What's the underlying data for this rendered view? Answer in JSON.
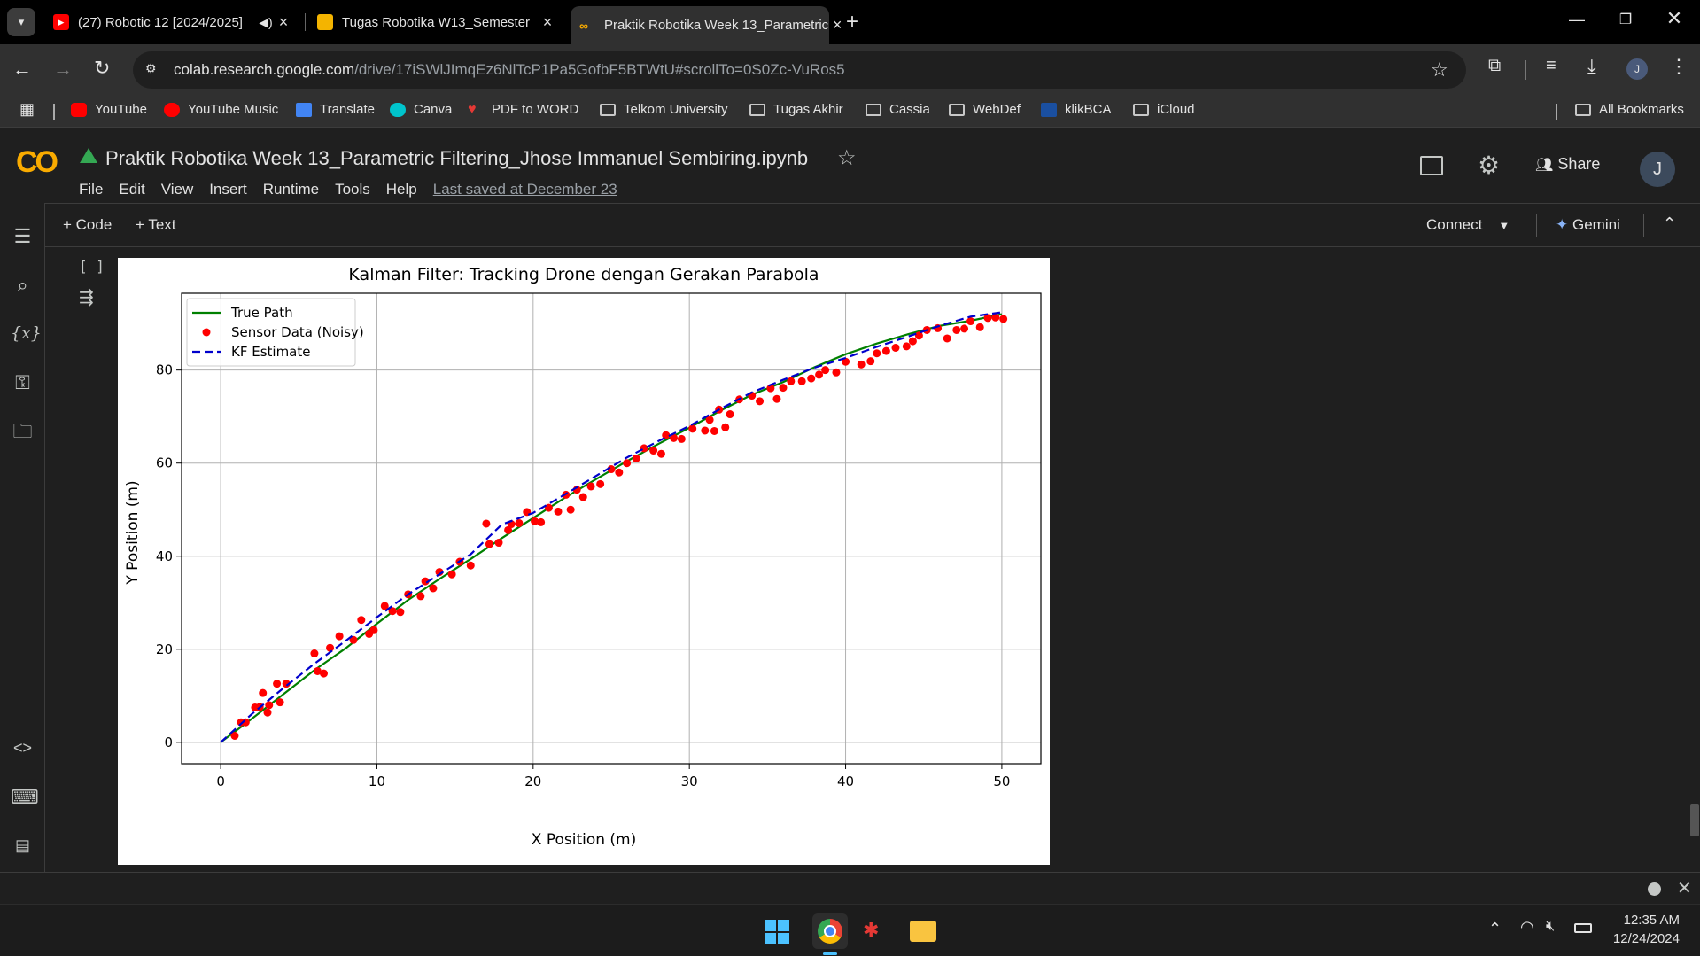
{
  "browser": {
    "tabs": [
      {
        "title": "(27) Robotic 12 [2024/2025]",
        "favicon": "youtube-icon"
      },
      {
        "title": "Tugas Robotika W13_Semester",
        "favicon": "slides-icon"
      },
      {
        "title": "Praktik Robotika Week 13_Parametric",
        "favicon": "colab-icon"
      }
    ],
    "url_host": "colab.research.google.com",
    "url_path": "/drive/17iSWlJImqEz6NlTcP1Pa5GofbF5BTWtU#scrollTo=0S0Zc-VuRos5",
    "profile_initial": "J",
    "bookmarks": [
      "YouTube",
      "YouTube Music",
      "Translate",
      "Canva",
      "PDF to WORD",
      "Telkom University",
      "Tugas Akhir",
      "Cassia",
      "WebDef",
      "klikBCA",
      "iCloud"
    ],
    "all_bookmarks": "All Bookmarks"
  },
  "colab": {
    "logo": "CO",
    "notebook_title": "Praktik Robotika Week 13_Parametric Filtering_Jhose Immanuel Sembiring.ipynb",
    "menus": [
      "File",
      "Edit",
      "View",
      "Insert",
      "Runtime",
      "Tools",
      "Help"
    ],
    "last_saved": "Last saved at December 23",
    "share": "Share",
    "avatar": "J",
    "add_code": "+ Code",
    "add_text": "+ Text",
    "connect": "Connect",
    "gemini": "Gemini",
    "cell_brackets": "[ ]"
  },
  "chart_data": {
    "type": "line",
    "title": "Kalman Filter: Tracking Drone dengan Gerakan Parabola",
    "xlabel": "X Position (m)",
    "ylabel": "Y Position (m)",
    "xlim": [
      -2.5,
      52.5
    ],
    "ylim": [
      -4.6,
      96.5
    ],
    "xticks": [
      0,
      10,
      20,
      30,
      40,
      50
    ],
    "yticks": [
      0,
      20,
      40,
      60,
      80
    ],
    "grid": true,
    "legend_position": "top-left",
    "series": [
      {
        "name": "True Path",
        "style": "solid",
        "color": "#008000",
        "x": [
          0,
          2,
          4,
          6,
          8,
          10,
          12,
          14,
          16,
          18,
          20,
          22,
          24,
          26,
          28,
          30,
          32,
          34,
          36,
          38,
          40,
          42,
          44,
          46,
          48,
          50
        ],
        "y": [
          0,
          5.1,
          10.3,
          15.5,
          20.2,
          25.5,
          30.6,
          35.1,
          39.4,
          43.9,
          48.2,
          52.5,
          56.5,
          60.4,
          64.1,
          67.6,
          71.3,
          74.7,
          77.4,
          80.6,
          83.4,
          85.7,
          87.7,
          89.5,
          90.6,
          92
        ]
      },
      {
        "name": "Sensor Data (Noisy)",
        "style": "points",
        "color": "#ff0000",
        "x": [
          0.9,
          1.3,
          1.6,
          2.2,
          2.5,
          2.7,
          3.0,
          3.1,
          3.6,
          3.8,
          4.2,
          6.0,
          6.2,
          6.6,
          7.0,
          7.6,
          8.5,
          9.0,
          9.5,
          9.8,
          10.5,
          11.0,
          11.5,
          12.0,
          12.8,
          13.1,
          13.6,
          14.0,
          14.8,
          15.3,
          16.0,
          17.0,
          17.2,
          17.8,
          18.4,
          18.6,
          19.1,
          19.6,
          20.1,
          20.5,
          21.0,
          21.6,
          22.1,
          22.4,
          22.8,
          23.2,
          23.7,
          24.3,
          25.0,
          25.5,
          26.0,
          26.6,
          27.1,
          27.7,
          28.2,
          28.5,
          29.0,
          29.5,
          30.2,
          31.0,
          31.3,
          31.6,
          31.9,
          32.3,
          32.6,
          33.2,
          34.0,
          34.5,
          35.2,
          35.6,
          36.0,
          36.5,
          37.2,
          37.8,
          38.3,
          38.7,
          39.4,
          40.0,
          41.0,
          41.6,
          42.0,
          42.6,
          43.2,
          43.9,
          44.3,
          44.7,
          45.2,
          45.9,
          46.5,
          47.1,
          47.6,
          48.0,
          48.6,
          49.1,
          49.6,
          50.1
        ],
        "y": [
          1.4,
          4.3,
          4.3,
          7.5,
          7.6,
          10.6,
          6.4,
          8.0,
          12.6,
          8.6,
          12.6,
          19.1,
          15.3,
          14.8,
          20.3,
          22.8,
          22.0,
          26.3,
          23.3,
          24.1,
          29.3,
          28.2,
          28.0,
          31.8,
          31.4,
          34.6,
          33.1,
          36.6,
          36.1,
          38.8,
          38.0,
          47.0,
          42.6,
          42.9,
          45.6,
          46.9,
          47.1,
          49.5,
          47.5,
          47.3,
          50.4,
          49.6,
          53.2,
          50.0,
          54.3,
          52.7,
          55.0,
          55.5,
          58.7,
          58.0,
          60.0,
          61.0,
          63.2,
          62.7,
          62.0,
          66.0,
          65.4,
          65.2,
          67.4,
          67.0,
          69.3,
          66.9,
          71.5,
          67.7,
          70.5,
          73.7,
          74.5,
          73.3,
          76.1,
          73.8,
          76.2,
          77.6,
          77.6,
          78.2,
          79.0,
          80.0,
          79.5,
          81.8,
          81.2,
          81.9,
          83.6,
          84.1,
          84.8,
          85.1,
          86.2,
          87.4,
          88.6,
          89.0,
          86.8,
          88.6,
          88.9,
          90.5,
          89.2,
          91.2,
          91.3,
          91.0
        ]
      },
      {
        "name": "KF Estimate",
        "style": "dashed",
        "color": "#0000cc",
        "x": [
          0,
          2,
          4,
          6,
          8,
          10,
          12,
          14,
          16,
          18,
          20,
          22,
          24,
          26,
          28,
          30,
          32,
          34,
          36,
          38,
          40,
          42,
          44,
          46,
          48,
          50
        ],
        "y": [
          0,
          6.1,
          11.6,
          16.9,
          21.8,
          26.9,
          31.8,
          36.1,
          40.4,
          46.8,
          49.3,
          53.2,
          57.2,
          61.2,
          64.7,
          68.0,
          71.7,
          75.2,
          77.9,
          80.5,
          82.6,
          85.0,
          87.2,
          89.5,
          91.5,
          92.4
        ]
      }
    ]
  },
  "taskbar": {
    "time": "12:35 AM",
    "date": "12/24/2024"
  }
}
